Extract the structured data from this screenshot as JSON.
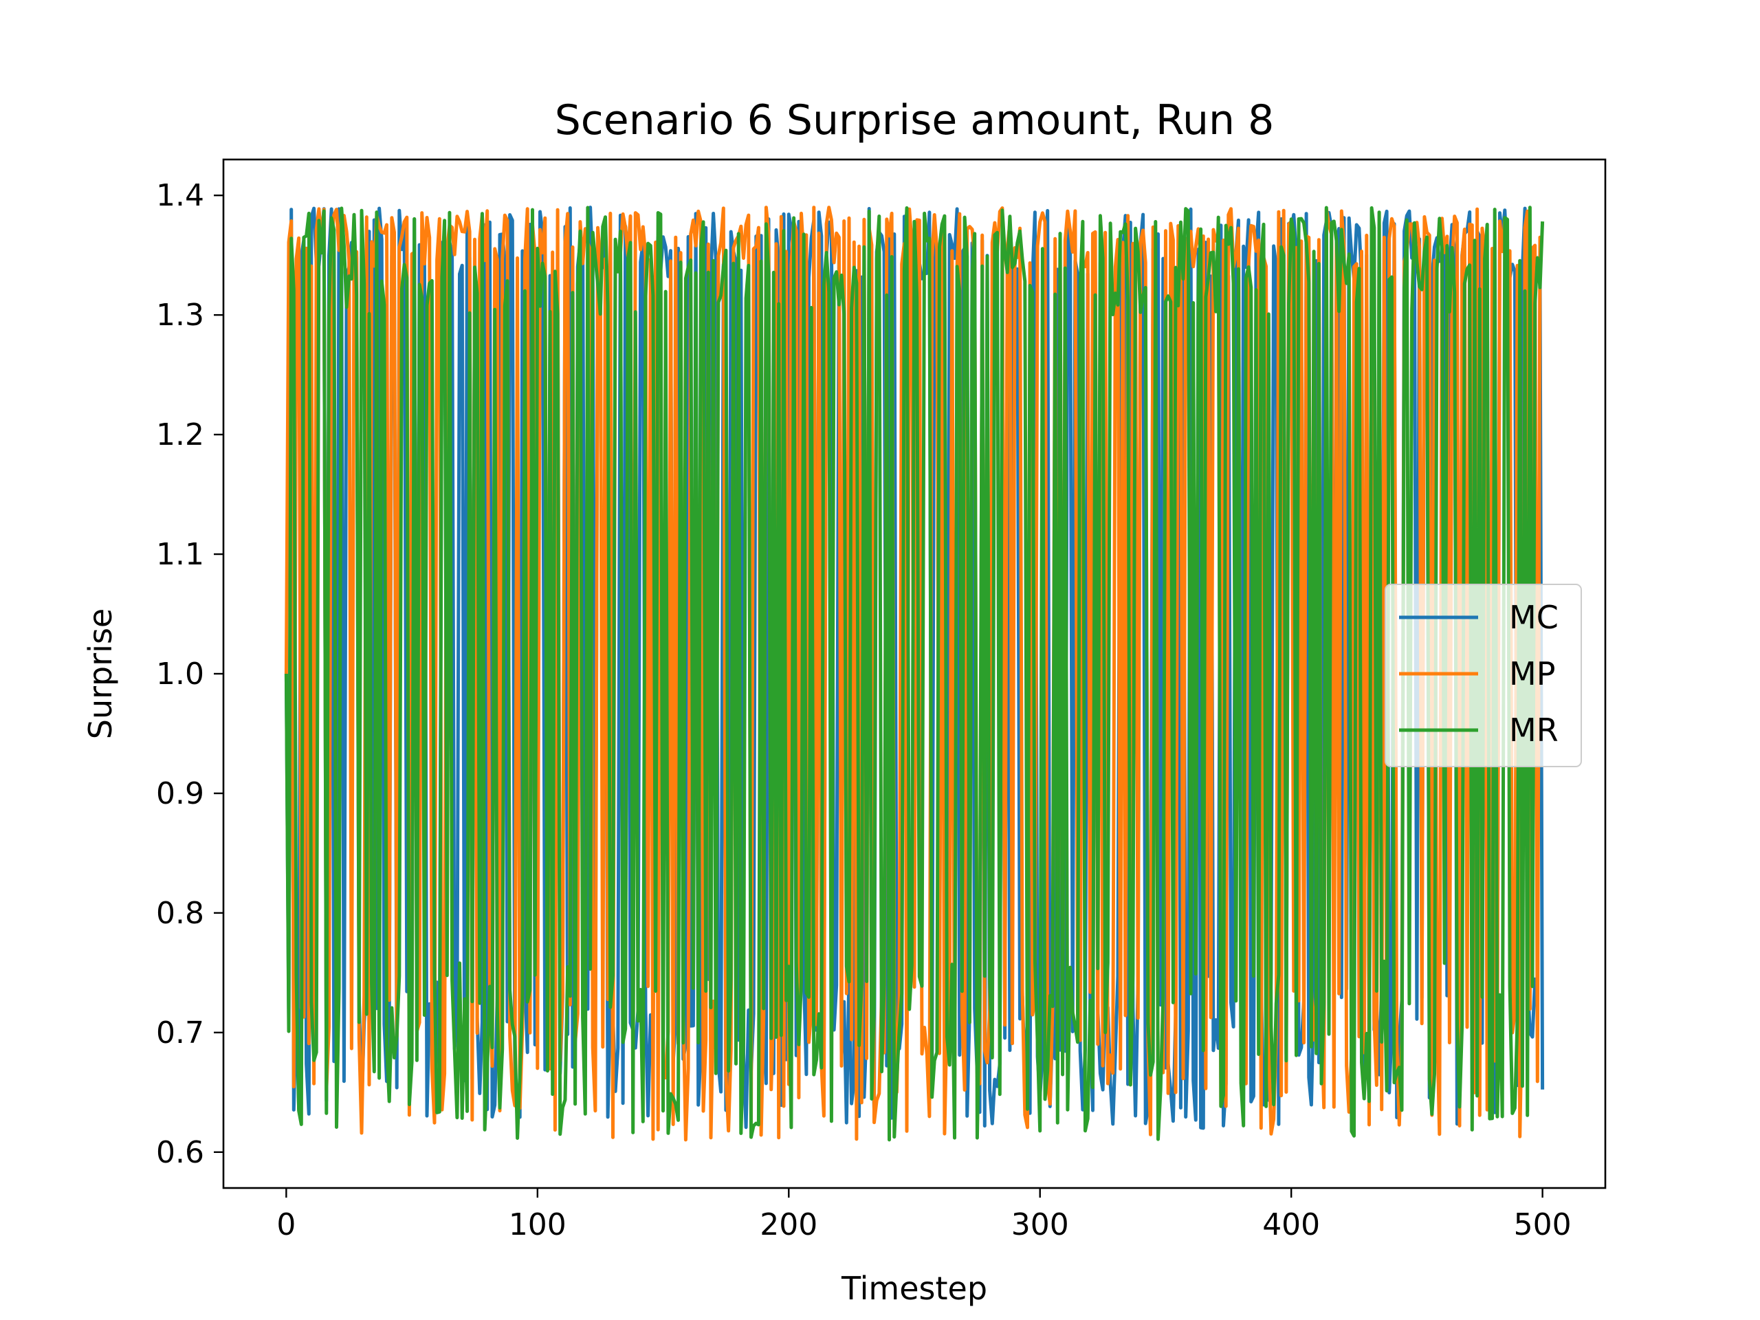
{
  "chart_data": {
    "type": "line",
    "title": "Scenario 6 Surprise amount, Run 8",
    "xlabel": "Timestep",
    "ylabel": "Surprise",
    "xlim": [
      -25,
      525
    ],
    "ylim": [
      0.57,
      1.43
    ],
    "xticks": [
      0,
      100,
      200,
      300,
      400,
      500
    ],
    "yticks": [
      0.6,
      0.7,
      0.8,
      0.9,
      1.0,
      1.1,
      1.2,
      1.3,
      1.4
    ],
    "xtick_labels": [
      "0",
      "100",
      "200",
      "300",
      "400",
      "500"
    ],
    "ytick_labels": [
      "0.6",
      "0.7",
      "0.8",
      "0.9",
      "1.0",
      "1.1",
      "1.2",
      "1.3",
      "1.4"
    ],
    "grid": false,
    "legend_position": "center-right",
    "x_range": [
      0,
      500
    ],
    "series": [
      {
        "name": "MC",
        "color": "#1f77b4",
        "start": 1.0,
        "high_range": [
          1.33,
          1.39
        ],
        "low_range": [
          0.62,
          0.75
        ],
        "low_fraction": 0.5
      },
      {
        "name": "MP",
        "color": "#ff7f0e",
        "start": 1.0,
        "high_range": [
          1.34,
          1.39
        ],
        "low_range": [
          0.61,
          0.74
        ],
        "low_fraction": 0.42
      },
      {
        "name": "MR",
        "color": "#2ca02c",
        "start": 1.0,
        "high_range": [
          1.3,
          1.39
        ],
        "low_range": [
          0.61,
          0.76
        ],
        "low_fraction": 0.5
      }
    ]
  }
}
